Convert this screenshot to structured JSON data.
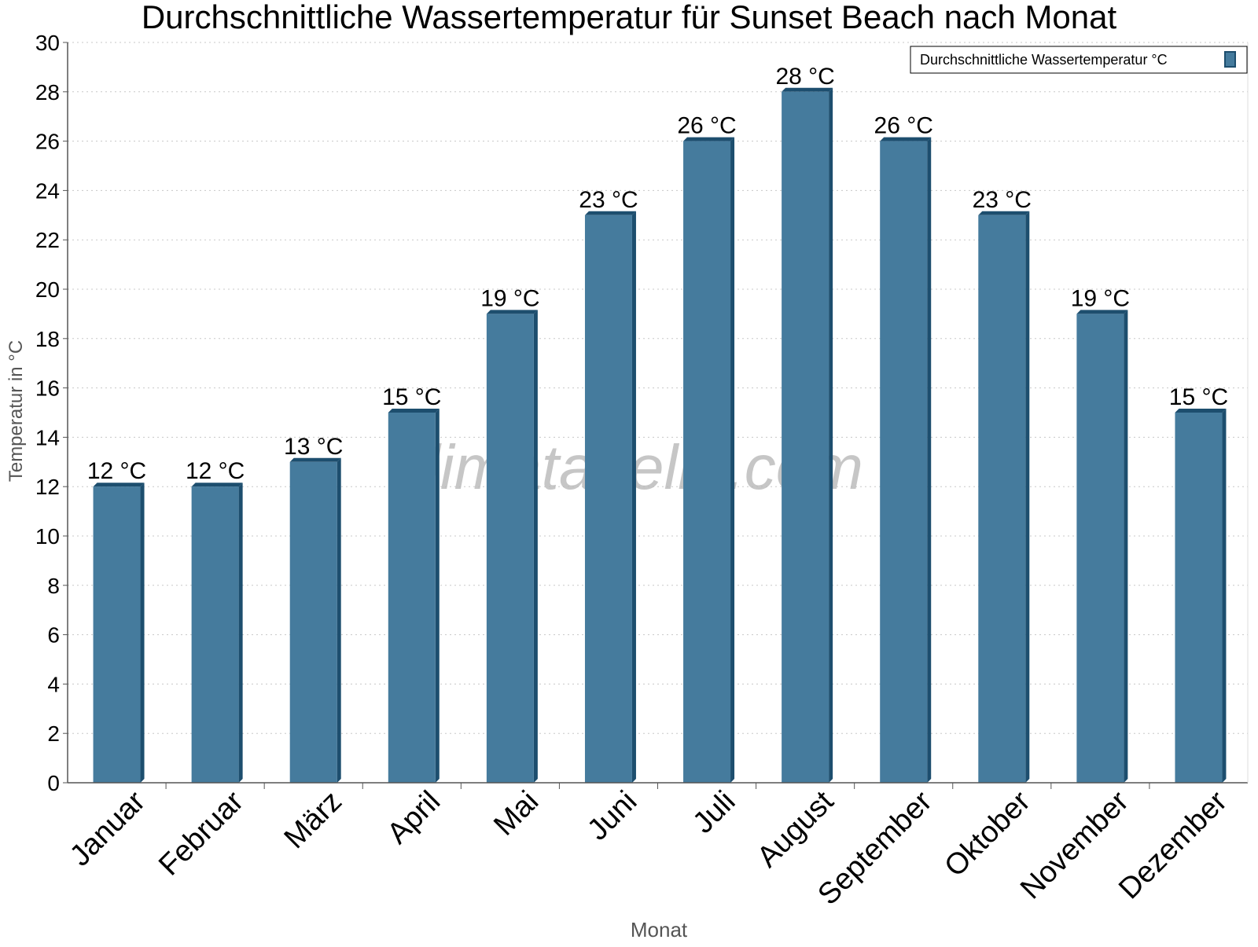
{
  "watermark": "klimatabelle.com",
  "chart_data": {
    "type": "bar",
    "title": "Durchschnittliche Wassertemperatur für Sunset Beach nach Monat",
    "xlabel": "Monat",
    "ylabel": "Temperatur in °C",
    "categories": [
      "Januar",
      "Februar",
      "März",
      "April",
      "Mai",
      "Juni",
      "Juli",
      "August",
      "September",
      "Oktober",
      "November",
      "Dezember"
    ],
    "series": [
      {
        "name": "Durchschnittliche Wassertemperatur °C",
        "values": [
          12,
          12,
          13,
          15,
          19,
          23,
          26,
          28,
          26,
          23,
          19,
          15
        ],
        "data_labels": [
          "12 °C",
          "12 °C",
          "13 °C",
          "15 °C",
          "19 °C",
          "23 °C",
          "26 °C",
          "28 °C",
          "26 °C",
          "23 °C",
          "19 °C",
          "15 °C"
        ],
        "color": "#457b9d",
        "edge_color": "#1d4e6e"
      }
    ],
    "ylim": [
      0,
      30
    ],
    "yticks": [
      0,
      2,
      4,
      6,
      8,
      10,
      12,
      14,
      16,
      18,
      20,
      22,
      24,
      26,
      28,
      30
    ],
    "grid": true,
    "legend": "top-right"
  }
}
